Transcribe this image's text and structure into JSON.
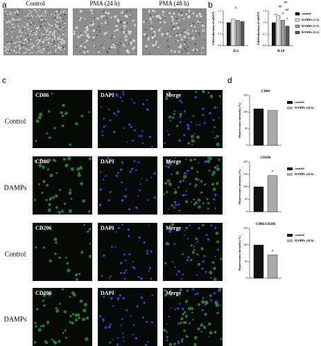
{
  "panels": {
    "a": {
      "label": "a",
      "images": [
        "Control",
        "PMA (24 h)",
        "PMA (48 h)"
      ]
    },
    "b": {
      "label": "b"
    },
    "c": {
      "label": "c",
      "rows": [
        {
          "label": "Control",
          "images": [
            "CD86",
            "DAPI",
            "Merge"
          ]
        },
        {
          "label": "DAMPs",
          "images": [
            "CD86",
            "DAPI",
            "Merge"
          ]
        },
        {
          "label": "Control",
          "images": [
            "CD206",
            "DAPI",
            "Merge"
          ]
        },
        {
          "label": "DAMPs",
          "images": [
            "CD206",
            "DAPI",
            "Merge"
          ]
        }
      ]
    },
    "d": {
      "label": "d"
    }
  },
  "chart_data": [
    {
      "type": "bar",
      "ylabel": "Fold induction of mRNA",
      "categories": [
        "IL6",
        "IL10"
      ],
      "series": [
        {
          "name": "control",
          "color": "#111111",
          "values": [
            1.0,
            1.0
          ]
        },
        {
          "name": "DAMPs (1:2)",
          "color": "#dddddd",
          "values": [
            1.15,
            1.3
          ]
        },
        {
          "name": "DAMPs (1:1)",
          "color": "#999999",
          "values": [
            1.1,
            1.1
          ]
        },
        {
          "name": "DAMPs (2:1)",
          "color": "#555555",
          "values": [
            1.05,
            0.85
          ]
        }
      ],
      "ylim": [
        0,
        1.5
      ],
      "yticks": [
        {
          "value": 0,
          "label": "0.0"
        },
        {
          "value": 0.5,
          "label": "0.5"
        },
        {
          "value": 1,
          "label": "1.0"
        },
        {
          "value": 1.5,
          "label": "1.5"
        }
      ],
      "annotations": [
        "#",
        "**",
        "*",
        "##",
        "##",
        "#",
        "##"
      ]
    },
    {
      "type": "bar",
      "title": "CD86",
      "ylabel": "Fluorescence intensity (%)",
      "series": [
        {
          "name": "control",
          "color": "#111111",
          "values": [
            110
          ]
        },
        {
          "name": "DAMPs (24 h)",
          "color": "#aaaaaa",
          "values": [
            105
          ]
        }
      ],
      "ylim": [
        0,
        150
      ],
      "yticks": [
        0,
        50,
        100,
        150
      ],
      "annotations": []
    },
    {
      "type": "bar",
      "title": "CD206",
      "ylabel": "Fluorescence intensity (%)",
      "series": [
        {
          "name": "control",
          "color": "#111111",
          "values": [
            100
          ]
        },
        {
          "name": "DAMPs (24 h)",
          "color": "#aaaaaa",
          "values": [
            145
          ]
        }
      ],
      "ylim": [
        0,
        200
      ],
      "yticks": [
        0,
        50,
        100,
        150,
        200
      ],
      "annotations": [
        "*"
      ]
    },
    {
      "type": "bar",
      "title": "CD86/CD206",
      "ylabel": "Fluorescence intensity (%)",
      "series": [
        {
          "name": "control",
          "color": "#111111",
          "values": [
            100
          ]
        },
        {
          "name": "DAMPs (24 h)",
          "color": "#aaaaaa",
          "values": [
            70
          ]
        }
      ],
      "ylim": [
        0,
        150
      ],
      "yticks": [
        0,
        50,
        100,
        150
      ],
      "annotations": [
        "*"
      ]
    }
  ]
}
